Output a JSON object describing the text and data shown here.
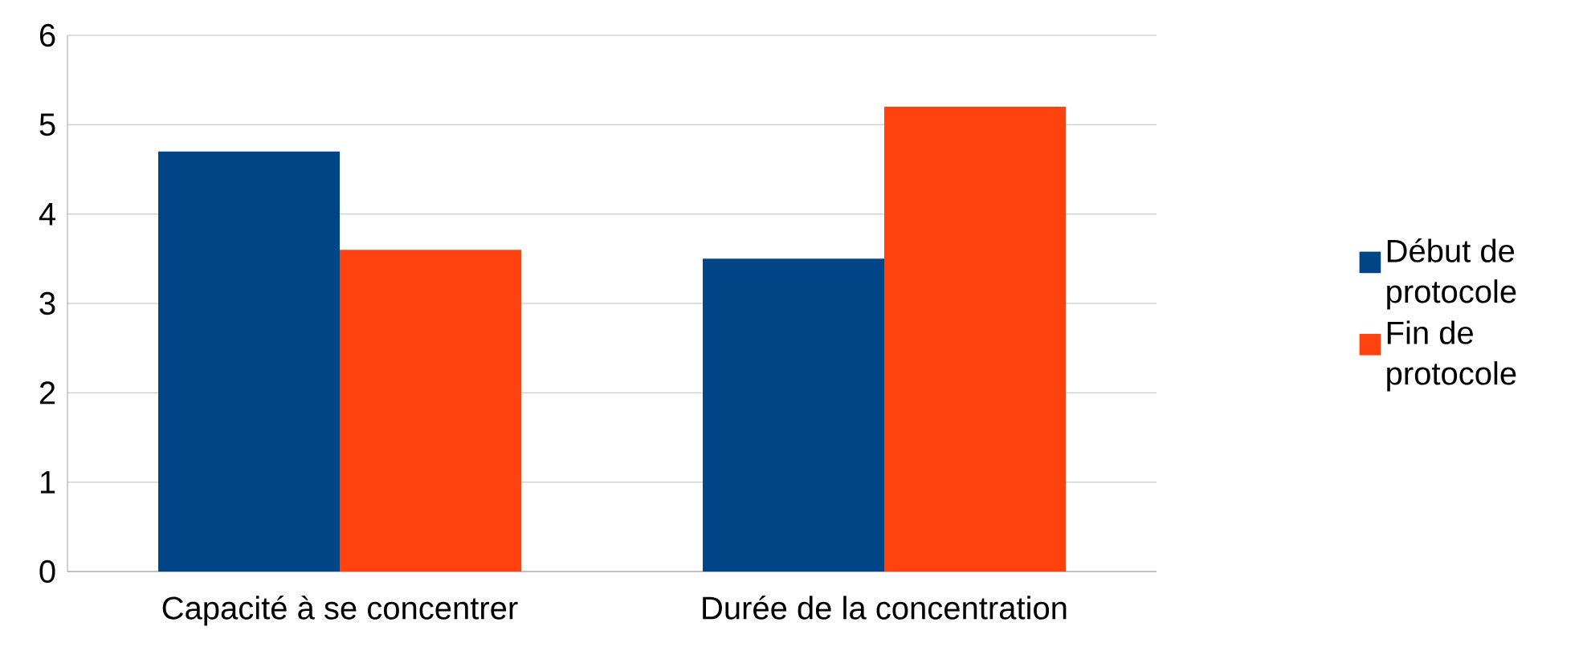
{
  "chart_data": {
    "type": "bar",
    "categories": [
      "Capacité à se concentrer",
      "Durée de la concentration"
    ],
    "series": [
      {
        "name": "Début de protocole",
        "color": "#004586",
        "values": [
          4.7,
          3.5
        ]
      },
      {
        "name": "Fin de protocole",
        "color": "#ff420e",
        "values": [
          3.6,
          5.2
        ]
      }
    ],
    "ylim": [
      0,
      6
    ],
    "yticks": [
      0,
      1,
      2,
      3,
      4,
      5,
      6
    ],
    "grid": "y",
    "legend": "right"
  }
}
